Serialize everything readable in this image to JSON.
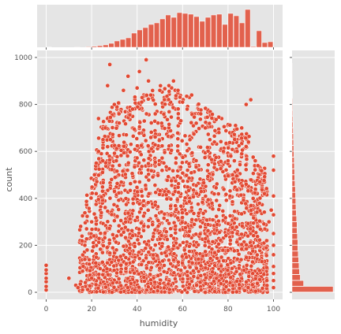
{
  "chart_data": {
    "type": "scatter",
    "kind": "jointplot with marginal histograms",
    "xlabel": "humidity",
    "ylabel": "count",
    "xlim": [
      -4,
      104
    ],
    "ylim": [
      -30,
      1030
    ],
    "x_ticks": [
      0,
      20,
      40,
      60,
      80,
      100
    ],
    "y_ticks": [
      0,
      200,
      400,
      600,
      800,
      1000
    ],
    "grid": true,
    "style": "ggplot",
    "point_color": "#e24a33",
    "histogram_color": "#e24a33",
    "background_color": "#e5e5e5",
    "grid_color": "#ffffff",
    "x_histogram": {
      "bin_edges_start": 0,
      "bin_width": 2.5,
      "relative_heights": [
        0.005,
        0,
        0,
        0,
        0,
        0.002,
        0,
        0.015,
        0.025,
        0.04,
        0.06,
        0.1,
        0.16,
        0.2,
        0.24,
        0.36,
        0.44,
        0.5,
        0.58,
        0.62,
        0.72,
        0.82,
        0.76,
        0.88,
        0.86,
        0.84,
        0.78,
        0.66,
        0.76,
        0.82,
        0.84,
        0.58,
        0.86,
        0.8,
        0.62,
        0.96,
        0.02,
        0.42,
        0.12,
        0.14
      ]
    },
    "y_histogram": {
      "bin_edges_start": 0,
      "bin_width": 25,
      "relative_widths": [
        1.0,
        0.28,
        0.2,
        0.18,
        0.17,
        0.16,
        0.15,
        0.14,
        0.14,
        0.13,
        0.12,
        0.12,
        0.11,
        0.1,
        0.095,
        0.09,
        0.085,
        0.08,
        0.07,
        0.065,
        0.06,
        0.055,
        0.05,
        0.045,
        0.04,
        0.036,
        0.032,
        0.028,
        0.024,
        0.02,
        0.017,
        0.014,
        0.011,
        0.008,
        0.006,
        0.004,
        0.003,
        0.002,
        0.001
      ]
    },
    "points": [
      [
        0,
        10
      ],
      [
        0,
        25
      ],
      [
        0,
        45
      ],
      [
        0,
        60
      ],
      [
        0,
        80
      ],
      [
        0,
        95
      ],
      [
        0,
        115
      ],
      [
        10,
        60
      ],
      [
        13,
        30
      ],
      [
        14,
        20
      ],
      [
        15,
        35
      ],
      [
        16,
        10
      ],
      [
        16,
        90
      ],
      [
        17,
        140
      ],
      [
        17,
        200
      ],
      [
        18,
        180
      ],
      [
        19,
        120
      ],
      [
        20,
        60
      ],
      [
        20,
        300
      ],
      [
        21,
        240
      ],
      [
        22,
        420
      ],
      [
        22,
        550
      ],
      [
        23,
        600
      ],
      [
        23,
        740
      ],
      [
        25,
        650
      ],
      [
        26,
        700
      ],
      [
        27,
        880
      ],
      [
        28,
        970
      ],
      [
        30,
        800
      ],
      [
        32,
        760
      ],
      [
        34,
        860
      ],
      [
        36,
        920
      ],
      [
        38,
        780
      ],
      [
        40,
        870
      ],
      [
        41,
        940
      ],
      [
        42,
        810
      ],
      [
        44,
        990
      ],
      [
        45,
        900
      ],
      [
        46,
        840
      ],
      [
        48,
        760
      ],
      [
        50,
        860
      ],
      [
        52,
        820
      ],
      [
        54,
        880
      ],
      [
        56,
        900
      ],
      [
        58,
        860
      ],
      [
        60,
        810
      ],
      [
        62,
        780
      ],
      [
        64,
        840
      ],
      [
        66,
        720
      ],
      [
        68,
        760
      ],
      [
        70,
        700
      ],
      [
        72,
        650
      ],
      [
        74,
        640
      ],
      [
        76,
        680
      ],
      [
        78,
        600
      ],
      [
        80,
        560
      ],
      [
        82,
        500
      ],
      [
        84,
        600
      ],
      [
        86,
        700
      ],
      [
        88,
        800
      ],
      [
        89,
        640
      ],
      [
        90,
        820
      ],
      [
        92,
        560
      ],
      [
        94,
        470
      ],
      [
        96,
        420
      ],
      [
        100,
        580
      ],
      [
        100,
        520
      ],
      [
        100,
        410
      ],
      [
        100,
        330
      ],
      [
        100,
        250
      ],
      [
        100,
        200
      ],
      [
        100,
        160
      ],
      [
        100,
        110
      ],
      [
        100,
        80
      ],
      [
        100,
        50
      ],
      [
        100,
        20
      ],
      [
        99,
        350
      ],
      [
        98,
        300
      ],
      [
        97,
        220
      ]
    ]
  }
}
